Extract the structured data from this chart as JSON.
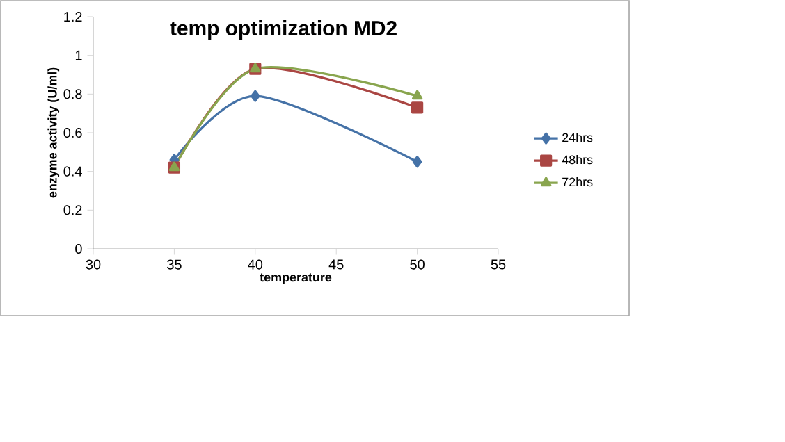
{
  "chart_data": {
    "type": "line",
    "title": "temp optimization MD2",
    "xlabel": "temperature",
    "ylabel": "enzyme activity (U/ml)",
    "x": [
      35,
      40,
      50
    ],
    "series": [
      {
        "name": "24hrs",
        "color": "#4572a7",
        "marker": "diamond",
        "values": [
          0.46,
          0.79,
          0.45
        ]
      },
      {
        "name": "48hrs",
        "color": "#aa4643",
        "marker": "square",
        "values": [
          0.42,
          0.93,
          0.73
        ]
      },
      {
        "name": "72hrs",
        "color": "#89a54e",
        "marker": "triangle",
        "values": [
          0.42,
          0.93,
          0.79
        ]
      }
    ],
    "xlim": [
      30,
      55
    ],
    "xticks": [
      30,
      35,
      40,
      45,
      50,
      55
    ],
    "ylim": [
      0,
      1.2
    ],
    "yticks": [
      0,
      0.2,
      0.4,
      0.6,
      0.8,
      1,
      1.2
    ],
    "grid": false,
    "legend": "right",
    "line_style": "solid"
  }
}
